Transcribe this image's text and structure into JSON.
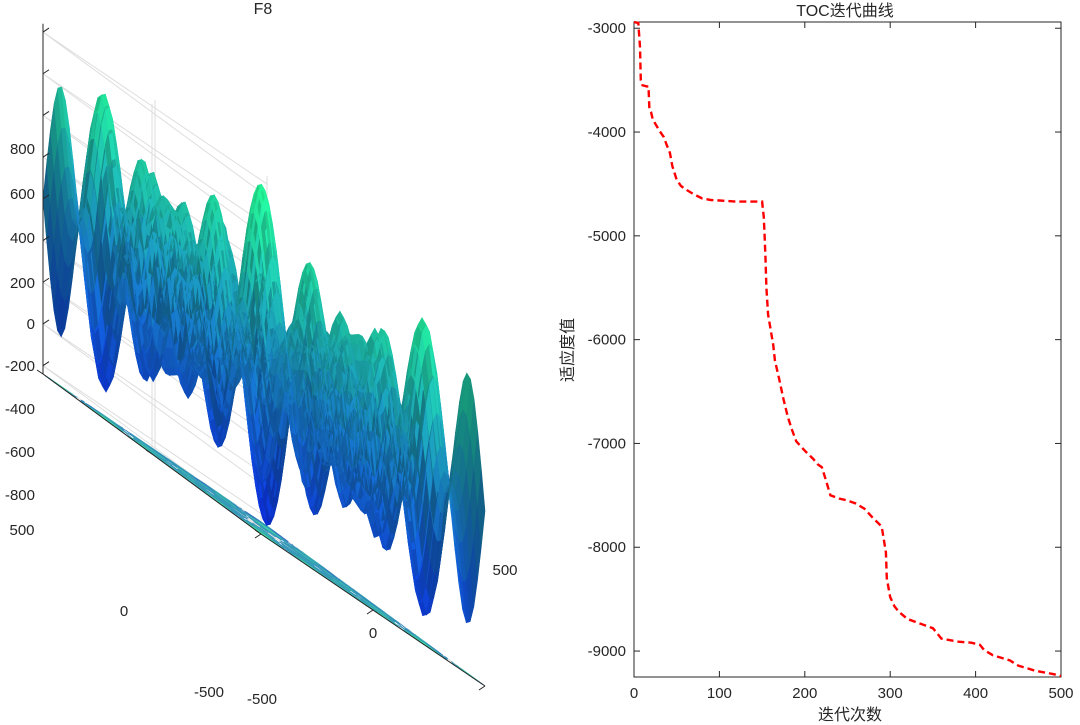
{
  "chart_data": [
    {
      "type": "surface",
      "title": "F8",
      "z_ticks": [
        "800",
        "600",
        "400",
        "200",
        "0",
        "-200",
        "-400",
        "-600",
        "-800"
      ],
      "x_ticks": [
        "500",
        "0",
        "-500"
      ],
      "y_ticks": [
        "500",
        "0",
        "-500"
      ],
      "x_range": [
        -500,
        500
      ],
      "y_range": [
        -500,
        500
      ],
      "z_range": [
        -840,
        840
      ],
      "function": "-x*sin(sqrt(|x|)) - y*sin(sqrt(|y|))",
      "colormap_low": "#0a2bd6",
      "colormap_high": "#22f08e",
      "contour_low": "#2a3fd0",
      "contour_high": "#3fe6a2"
    },
    {
      "type": "line",
      "title": "TOC迭代曲线",
      "xlabel": "迭代次数",
      "ylabel": "适应度值",
      "xlim": [
        0,
        500
      ],
      "ylim": [
        -9250,
        -2940
      ],
      "x_ticks": [
        0,
        100,
        200,
        300,
        400,
        500
      ],
      "y_ticks": [
        -3000,
        -4000,
        -5000,
        -6000,
        -7000,
        -8000,
        -9000
      ],
      "y_tick_labels": [
        "-3000",
        "-4000",
        "-5000",
        "-6000",
        "-7000",
        "-8000",
        "-9000"
      ],
      "x_tick_labels": [
        "0",
        "100",
        "200",
        "300",
        "400",
        "500"
      ],
      "series": [
        {
          "name": "TOC",
          "color": "#ff0000",
          "style": "dashed",
          "x": [
            0,
            5,
            7,
            8,
            10,
            15,
            17,
            18,
            20,
            22,
            25,
            30,
            35,
            38,
            42,
            45,
            50,
            55,
            60,
            70,
            80,
            90,
            100,
            120,
            140,
            148,
            150,
            152,
            153,
            154,
            155,
            157,
            160,
            163,
            165,
            170,
            175,
            180,
            185,
            190,
            200,
            205,
            210,
            215,
            220,
            225,
            230,
            240,
            250,
            260,
            270,
            280,
            290,
            295,
            296,
            300,
            305,
            310,
            320,
            330,
            340,
            350,
            355,
            360,
            380,
            395,
            405,
            410,
            420,
            440,
            450,
            470,
            490,
            500
          ],
          "y": [
            -2940,
            -2950,
            -3180,
            -3500,
            -3550,
            -3560,
            -3560,
            -3780,
            -3810,
            -3880,
            -3920,
            -3990,
            -4050,
            -4120,
            -4200,
            -4330,
            -4460,
            -4520,
            -4550,
            -4600,
            -4640,
            -4655,
            -4660,
            -4670,
            -4670,
            -4670,
            -4670,
            -4820,
            -5020,
            -5220,
            -5500,
            -5760,
            -5900,
            -6050,
            -6200,
            -6380,
            -6570,
            -6740,
            -6870,
            -6980,
            -7070,
            -7110,
            -7150,
            -7200,
            -7230,
            -7360,
            -7500,
            -7530,
            -7550,
            -7580,
            -7630,
            -7720,
            -7800,
            -8050,
            -8300,
            -8480,
            -8570,
            -8620,
            -8690,
            -8720,
            -8750,
            -8780,
            -8830,
            -8880,
            -8910,
            -8920,
            -8940,
            -8990,
            -9040,
            -9090,
            -9140,
            -9190,
            -9220,
            -9240
          ]
        }
      ]
    }
  ]
}
